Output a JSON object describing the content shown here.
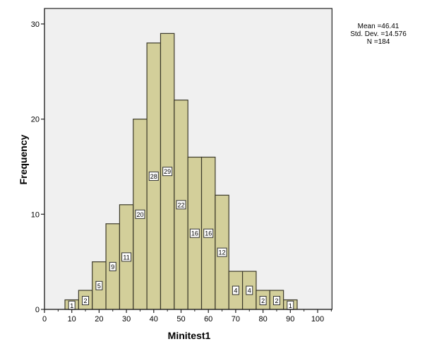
{
  "chart_data": {
    "type": "bar",
    "subtype": "histogram",
    "title": "",
    "xlabel": "Minitest1",
    "ylabel": "Frequency",
    "bin_width": 5,
    "bin_centers": [
      10,
      15,
      20,
      25,
      30,
      35,
      40,
      45,
      50,
      55,
      60,
      65,
      70,
      75,
      80,
      85,
      90
    ],
    "categories": [
      "7.5-12.5",
      "12.5-17.5",
      "17.5-22.5",
      "22.5-27.5",
      "27.5-32.5",
      "32.5-37.5",
      "37.5-42.5",
      "42.5-47.5",
      "47.5-52.5",
      "52.5-57.5",
      "57.5-62.5",
      "62.5-67.5",
      "67.5-72.5",
      "72.5-77.5",
      "77.5-82.5",
      "82.5-87.5",
      "87.5-92.5"
    ],
    "values": [
      1,
      2,
      5,
      9,
      11,
      20,
      28,
      29,
      22,
      16,
      16,
      12,
      4,
      4,
      2,
      2,
      1
    ],
    "data_labels": true,
    "xlim": [
      0,
      105
    ],
    "ylim": [
      0,
      30
    ],
    "x_ticks": [
      0,
      10,
      20,
      30,
      40,
      50,
      60,
      70,
      80,
      90,
      100
    ],
    "x_minor_ticks": [
      5,
      15,
      25,
      35,
      45,
      55,
      65,
      75,
      85,
      95,
      105
    ],
    "y_ticks": [
      0,
      10,
      20,
      30
    ],
    "grid": false,
    "legend": null,
    "annotations": {
      "mean": "Mean =46.41",
      "std_dev": "Std. Dev. =14.576",
      "n": "N =184"
    },
    "colors": {
      "bar_fill": "#d3cf9a",
      "bar_edge": "#3c3a2a",
      "plot_bg": "#f0f0f0",
      "frame": "#222222"
    }
  }
}
